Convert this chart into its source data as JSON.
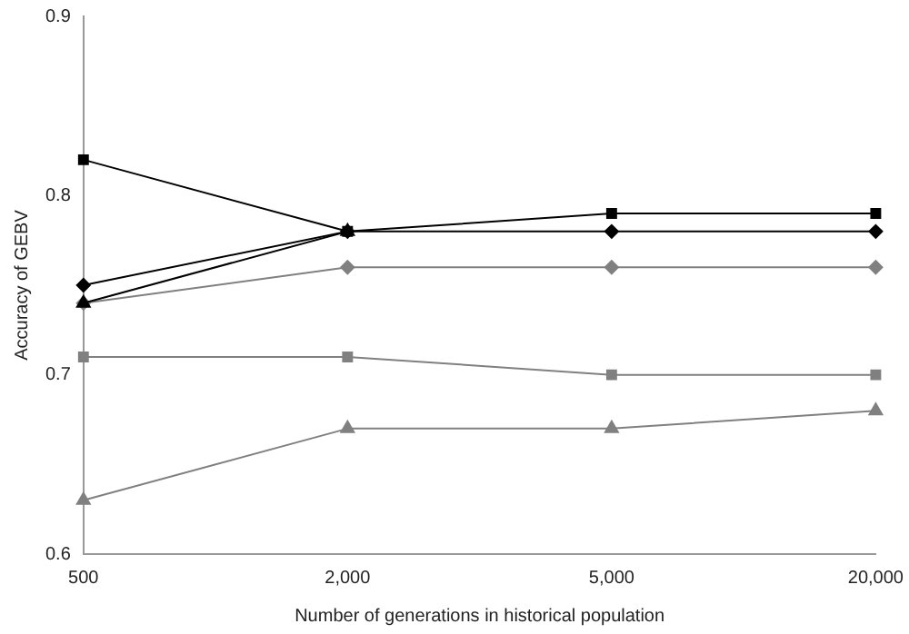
{
  "chart_data": {
    "type": "line",
    "xlabel": "Number of generations in historical population",
    "ylabel": "Accuracy of GEBV",
    "categories": [
      "500",
      "2,000",
      "5,000",
      "20,000"
    ],
    "series": [
      {
        "color": "#000000",
        "marker": "square",
        "values": [
          0.82,
          0.78,
          0.79,
          0.79
        ]
      },
      {
        "color": "#000000",
        "marker": "diamond",
        "values": [
          0.75,
          0.78,
          0.78,
          0.78
        ]
      },
      {
        "color": "#000000",
        "marker": "triangle",
        "values": [
          0.74,
          0.78,
          null,
          null
        ]
      },
      {
        "color": "#808080",
        "marker": "diamond",
        "values": [
          0.74,
          0.76,
          0.76,
          0.76
        ]
      },
      {
        "color": "#808080",
        "marker": "square",
        "values": [
          0.71,
          0.71,
          0.7,
          0.7
        ]
      },
      {
        "color": "#808080",
        "marker": "triangle",
        "values": [
          0.63,
          0.67,
          0.67,
          0.68
        ]
      }
    ],
    "ylim": [
      0.6,
      0.9
    ],
    "yticks": [
      0.6,
      0.7,
      0.8,
      0.9
    ],
    "grid": false,
    "legend": false,
    "line_style": "solid"
  }
}
